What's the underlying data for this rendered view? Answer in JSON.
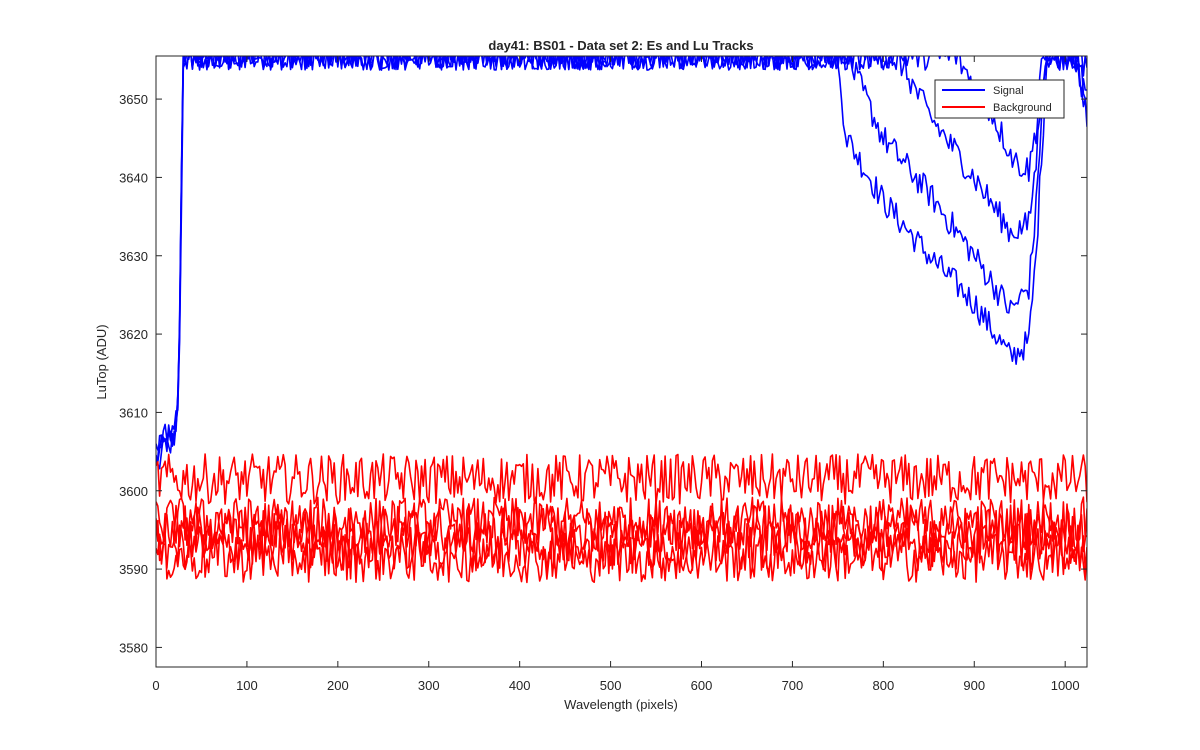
{
  "chart_data": {
    "type": "line",
    "title": "day41: BS01 - Data set 2: Es and Lu Tracks",
    "xlabel": "Wavelength (pixels)",
    "ylabel": "LuTop (ADU)",
    "xlim": [
      0,
      1024
    ],
    "ylim": [
      3577.5,
      3655.5
    ],
    "x_ticks": [
      0,
      100,
      200,
      300,
      400,
      500,
      600,
      700,
      800,
      900,
      1000
    ],
    "y_ticks": [
      3580,
      3590,
      3600,
      3610,
      3620,
      3630,
      3640,
      3650
    ],
    "grid": false,
    "legend_position": "top-right",
    "legend": [
      {
        "label": "Signal",
        "color": "#0000ff"
      },
      {
        "label": "Background",
        "color": "#ff0000"
      }
    ],
    "series": [
      {
        "group": "Signal",
        "color": "#0000ff",
        "points": [
          [
            0,
            3604
          ],
          [
            10,
            3606
          ],
          [
            20,
            3607
          ],
          [
            25,
            3612
          ],
          [
            28,
            3640
          ],
          [
            30,
            3655.5
          ],
          [
            748,
            3655.5
          ],
          [
            760,
            3645
          ],
          [
            800,
            3637
          ],
          [
            850,
            3630
          ],
          [
            900,
            3624
          ],
          [
            940,
            3617
          ],
          [
            960,
            3619
          ],
          [
            968,
            3630
          ],
          [
            975,
            3645
          ],
          [
            980,
            3655.5
          ],
          [
            1010,
            3655.5
          ],
          [
            1018,
            3650
          ],
          [
            1024,
            3648
          ]
        ]
      },
      {
        "group": "Signal",
        "color": "#0000ff",
        "points": [
          [
            0,
            3605
          ],
          [
            10,
            3607
          ],
          [
            20,
            3608
          ],
          [
            25,
            3613
          ],
          [
            28,
            3642
          ],
          [
            30,
            3655.5
          ],
          [
            760,
            3655.5
          ],
          [
            800,
            3645
          ],
          [
            850,
            3638
          ],
          [
            900,
            3630
          ],
          [
            940,
            3623
          ],
          [
            960,
            3626
          ],
          [
            968,
            3636
          ],
          [
            975,
            3650
          ],
          [
            980,
            3655.5
          ],
          [
            1013,
            3655.5
          ],
          [
            1018,
            3652
          ],
          [
            1024,
            3650
          ]
        ]
      },
      {
        "group": "Signal",
        "color": "#0000ff",
        "points": [
          [
            0,
            3603
          ],
          [
            10,
            3606
          ],
          [
            20,
            3606
          ],
          [
            25,
            3611
          ],
          [
            28,
            3638
          ],
          [
            30,
            3655.5
          ],
          [
            815,
            3655.5
          ],
          [
            850,
            3648
          ],
          [
            900,
            3640
          ],
          [
            940,
            3633
          ],
          [
            960,
            3634
          ],
          [
            968,
            3642
          ],
          [
            975,
            3652
          ],
          [
            978,
            3655.5
          ],
          [
            1015,
            3655.5
          ],
          [
            1020,
            3652
          ],
          [
            1024,
            3651
          ]
        ]
      },
      {
        "group": "Signal",
        "color": "#0000ff",
        "points": [
          [
            0,
            3605
          ],
          [
            10,
            3607
          ],
          [
            20,
            3607
          ],
          [
            25,
            3612
          ],
          [
            28,
            3641
          ],
          [
            30,
            3655.5
          ],
          [
            880,
            3655.5
          ],
          [
            920,
            3648
          ],
          [
            945,
            3642
          ],
          [
            960,
            3641
          ],
          [
            968,
            3646
          ],
          [
            974,
            3655.5
          ],
          [
            1018,
            3655.5
          ],
          [
            1024,
            3653
          ]
        ]
      },
      {
        "group": "Background",
        "color": "#ff0000",
        "points": [
          [
            0,
            3601.5
          ],
          [
            1024,
            3601.5
          ]
        ]
      },
      {
        "group": "Background",
        "color": "#ff0000",
        "points": [
          [
            0,
            3596
          ],
          [
            1024,
            3596
          ]
        ]
      },
      {
        "group": "Background",
        "color": "#ff0000",
        "points": [
          [
            0,
            3595
          ],
          [
            1024,
            3595
          ]
        ]
      },
      {
        "group": "Background",
        "color": "#ff0000",
        "points": [
          [
            0,
            3593
          ],
          [
            1024,
            3593
          ]
        ]
      },
      {
        "group": "Background",
        "color": "#ff0000",
        "points": [
          [
            0,
            3591.5
          ],
          [
            1024,
            3591.5
          ]
        ]
      }
    ]
  }
}
